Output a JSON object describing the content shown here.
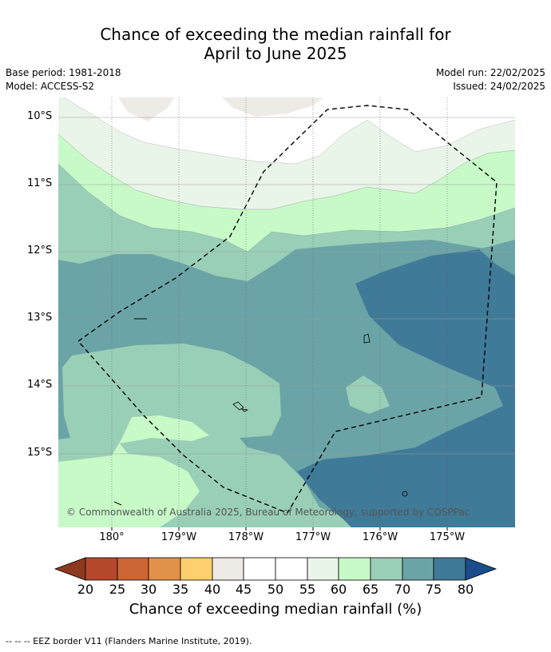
{
  "header": {
    "title_line1": "Chance of exceeding the median rainfall for",
    "title_line2": "April to June 2025",
    "base_period": "Base period: 1981-2018",
    "model": "Model: ACCESS-S2",
    "model_run": "Model run: 22/02/2025",
    "issued": "Issued: 24/02/2025"
  },
  "map": {
    "lat_labels": [
      "10°S",
      "11°S",
      "12°S",
      "13°S",
      "14°S",
      "15°S"
    ],
    "lon_labels": [
      "180°",
      "179°W",
      "178°W",
      "177°W",
      "176°W",
      "175°W"
    ],
    "copyright": "© Commonwealth of Australia 2025, Bureau of Meteorology, supported by COSPPac"
  },
  "colorbar": {
    "ticks": [
      "20",
      "25",
      "30",
      "35",
      "40",
      "45",
      "50",
      "55",
      "60",
      "65",
      "70",
      "75",
      "80"
    ],
    "colors": {
      "below_20": "#8b3a1f",
      "20-25": "#b5482a",
      "25-30": "#cc6535",
      "30-35": "#e19248",
      "35-40": "#fdd06d",
      "40-45": "#eeeae6",
      "45-50": "#ffffff",
      "50-55": "#ffffff",
      "55-60": "#eaf5ea",
      "60-65": "#c8fac8",
      "65-70": "#9acfb7",
      "70-75": "#6ba4a6",
      "75-80": "#3f7a98",
      "above_80": "#1a4e8a"
    },
    "title": "Chance of exceeding median rainfall (%)"
  },
  "footer": {
    "eez_note": "--  --  -- EEZ border V11 (Flanders Marine Institute, 2019)."
  }
}
